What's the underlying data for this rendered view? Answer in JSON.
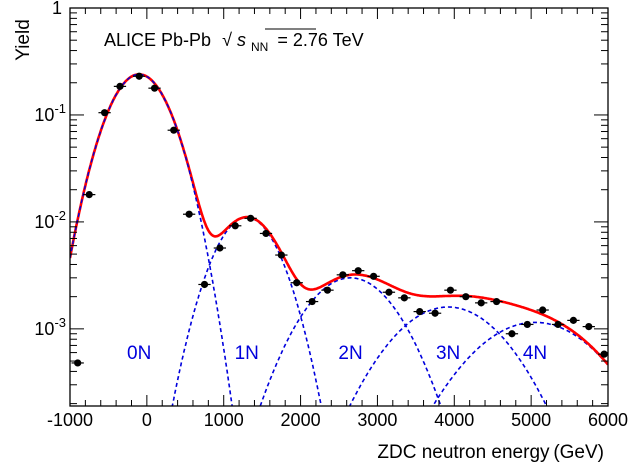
{
  "chart_data": {
    "type": "scatter",
    "title": "",
    "annotation": {
      "prefix": "ALICE Pb-Pb",
      "sqrt_symbol": "√",
      "var": "s",
      "sub": "NN",
      "suffix": "= 2.76 TeV"
    },
    "xlabel": "ZDC neutron energy (GeV)",
    "ylabel": "Yield",
    "xlim": [
      -1000,
      6000
    ],
    "ylim": [
      0.00019,
      1
    ],
    "yscale": "log",
    "grid": false,
    "x_ticks": [
      -1000,
      0,
      1000,
      2000,
      3000,
      4000,
      5000,
      6000
    ],
    "x_tick_labels": [
      "-1000",
      "0",
      "1000",
      "2000",
      "3000",
      "4000",
      "5000",
      "6000"
    ],
    "y_ticks": [
      {
        "value": 1,
        "base": "1",
        "exp": ""
      },
      {
        "value": 0.1,
        "base": "10",
        "exp": "-1"
      },
      {
        "value": 0.01,
        "base": "10",
        "exp": "-2"
      },
      {
        "value": 0.001,
        "base": "10",
        "exp": "-3"
      }
    ],
    "peak_labels": [
      {
        "text": "0N",
        "x": -100
      },
      {
        "text": "1N",
        "x": 1300
      },
      {
        "text": "2N",
        "x": 2650
      },
      {
        "text": "3N",
        "x": 3920
      },
      {
        "text": "4N",
        "x": 5050
      }
    ],
    "data_points": [
      {
        "x": -900,
        "y": 0.00048,
        "xerr": 80
      },
      {
        "x": -750,
        "y": 0.018,
        "xerr": 80
      },
      {
        "x": -550,
        "y": 0.105,
        "xerr": 80
      },
      {
        "x": -350,
        "y": 0.185,
        "xerr": 80
      },
      {
        "x": -100,
        "y": 0.23,
        "xerr": 80
      },
      {
        "x": 100,
        "y": 0.178,
        "xerr": 80
      },
      {
        "x": 350,
        "y": 0.072,
        "xerr": 80
      },
      {
        "x": 550,
        "y": 0.0118,
        "xerr": 80
      },
      {
        "x": 750,
        "y": 0.0026,
        "xerr": 80
      },
      {
        "x": 950,
        "y": 0.0057,
        "xerr": 80
      },
      {
        "x": 1150,
        "y": 0.0092,
        "xerr": 80
      },
      {
        "x": 1350,
        "y": 0.0108,
        "xerr": 80
      },
      {
        "x": 1550,
        "y": 0.0078,
        "xerr": 80
      },
      {
        "x": 1750,
        "y": 0.0049,
        "xerr": 80
      },
      {
        "x": 1950,
        "y": 0.0027,
        "xerr": 80
      },
      {
        "x": 2150,
        "y": 0.0018,
        "xerr": 80
      },
      {
        "x": 2350,
        "y": 0.0023,
        "xerr": 80
      },
      {
        "x": 2550,
        "y": 0.0032,
        "xerr": 80
      },
      {
        "x": 2750,
        "y": 0.0035,
        "xerr": 80
      },
      {
        "x": 2950,
        "y": 0.0031,
        "xerr": 80
      },
      {
        "x": 3150,
        "y": 0.0022,
        "xerr": 80
      },
      {
        "x": 3350,
        "y": 0.00195,
        "xerr": 80
      },
      {
        "x": 3550,
        "y": 0.00145,
        "xerr": 80
      },
      {
        "x": 3750,
        "y": 0.0014,
        "xerr": 80
      },
      {
        "x": 3950,
        "y": 0.0023,
        "xerr": 80
      },
      {
        "x": 4150,
        "y": 0.002,
        "xerr": 80
      },
      {
        "x": 4350,
        "y": 0.00175,
        "xerr": 80
      },
      {
        "x": 4550,
        "y": 0.0018,
        "xerr": 80
      },
      {
        "x": 4750,
        "y": 0.0009,
        "xerr": 80
      },
      {
        "x": 4950,
        "y": 0.0011,
        "xerr": 80
      },
      {
        "x": 5150,
        "y": 0.0015,
        "xerr": 80
      },
      {
        "x": 5350,
        "y": 0.0011,
        "xerr": 80
      },
      {
        "x": 5550,
        "y": 0.0012,
        "xerr": 80
      },
      {
        "x": 5750,
        "y": 0.00105,
        "xerr": 80
      },
      {
        "x": 5950,
        "y": 0.00058,
        "xerr": 80
      }
    ],
    "components": [
      {
        "mean": -100,
        "sigma": 320,
        "amp": 0.24
      },
      {
        "mean": 1300,
        "sigma": 340,
        "amp": 0.011
      },
      {
        "mean": 2650,
        "sigma": 500,
        "amp": 0.003
      },
      {
        "mean": 3920,
        "sigma": 620,
        "amp": 0.0016
      },
      {
        "mean": 5050,
        "sigma": 700,
        "amp": 0.00115
      }
    ],
    "colors": {
      "total_fit": "#ff0000",
      "components": "#0000dd",
      "points": "#000000",
      "peak_labels": "#0000dd"
    }
  }
}
